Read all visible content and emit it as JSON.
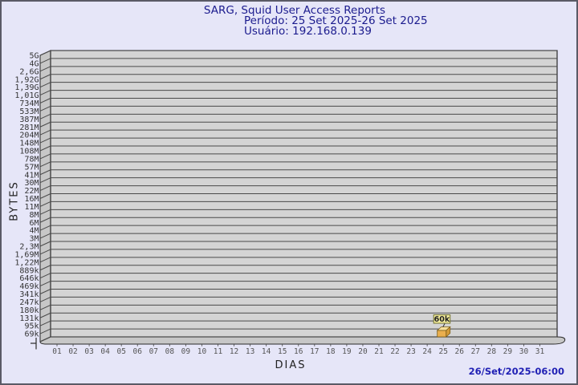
{
  "header": {
    "title": "SARG, Squid User Access Reports",
    "period": "Período: 25 Set 2025-26 Set 2025",
    "user": "Usuário: 192.168.0.139"
  },
  "footer": {
    "timestamp": "26/Set/2025-06:00"
  },
  "chart_data": {
    "type": "bar",
    "title": "SARG, Squid User Access Reports",
    "subtitle": "Período: 25 Set 2025-26 Set 2025 — Usuário: 192.168.0.139",
    "xlabel": "DIAS",
    "ylabel": "BYTES",
    "x_ticks": [
      "01",
      "02",
      "03",
      "04",
      "05",
      "06",
      "07",
      "08",
      "09",
      "10",
      "11",
      "12",
      "13",
      "14",
      "15",
      "16",
      "17",
      "18",
      "19",
      "20",
      "21",
      "22",
      "23",
      "24",
      "25",
      "26",
      "27",
      "28",
      "29",
      "30",
      "31"
    ],
    "y_ticks": [
      "5G",
      "4G",
      "2,6G",
      "1,92G",
      "1,39G",
      "1,01G",
      "734M",
      "533M",
      "387M",
      "281M",
      "204M",
      "148M",
      "108M",
      "78M",
      "57M",
      "41M",
      "30M",
      "22M",
      "16M",
      "11M",
      "8M",
      "6M",
      "4M",
      "3M",
      "2,3M",
      "1,69M",
      "1,22M",
      "889k",
      "646k",
      "469k",
      "341k",
      "247k",
      "180k",
      "131k",
      "95k",
      "69k"
    ],
    "y_axis_scale": "logarithmic",
    "grid": true,
    "legend": "none",
    "series": [
      {
        "name": "bytes-per-day",
        "points": [
          {
            "x": "25",
            "value_label": "60k",
            "value_bytes": 60000
          }
        ]
      }
    ],
    "annotations": [
      {
        "x": "25",
        "text": "60k"
      }
    ]
  },
  "colors": {
    "background": "#e6e6f8",
    "plot_bg": "#d4d4d4",
    "wall": "#c7c7c7",
    "grid": "#4a4a4a",
    "frame": "#2a2a2a",
    "tick_label_y": "#333333",
    "tick_label_x": "#555555",
    "title": "#1b1b8e",
    "footer": "#2121b5",
    "bar_front": "#eaaf4e",
    "bar_top": "#f6df9a",
    "bar_side": "#d39a38",
    "bar_outline": "#7a5c17",
    "annotation_bg": "#f7f0a0",
    "annotation_border": "#70702c",
    "annotation_text": "#222222"
  }
}
